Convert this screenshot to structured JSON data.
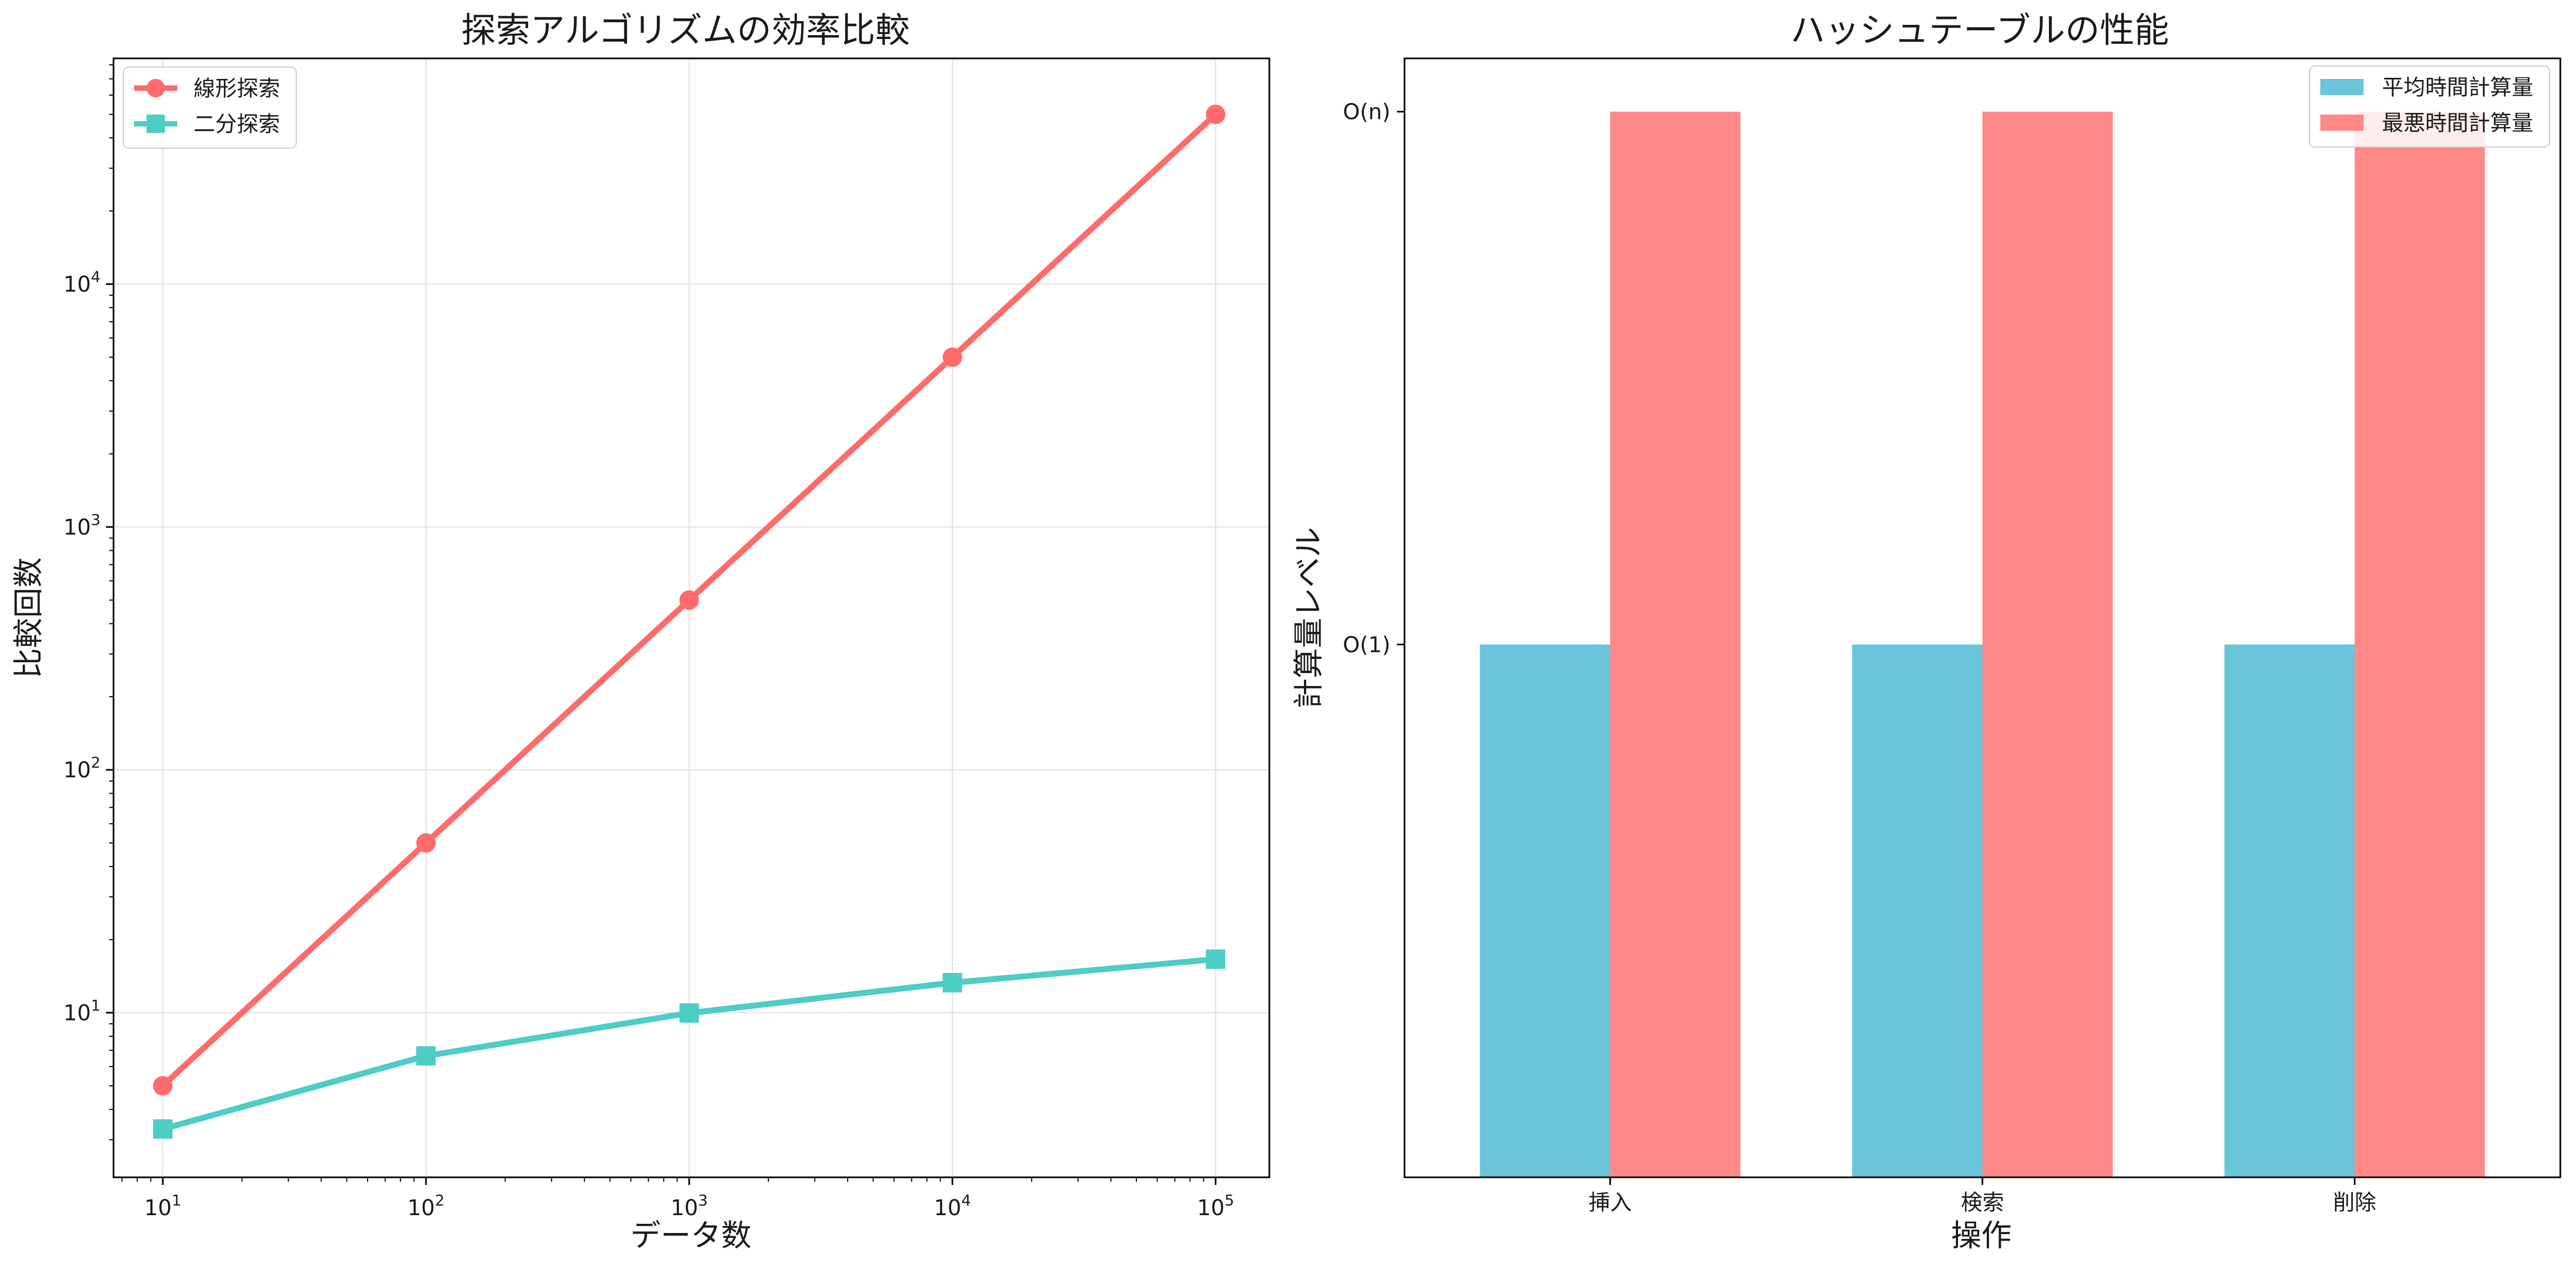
{
  "chart_data": [
    {
      "type": "line",
      "title": "探索アルゴリズムの効率比較",
      "xlabel": "データ数",
      "ylabel": "比較回数",
      "xscale": "log",
      "yscale": "log",
      "x": [
        10,
        100,
        1000,
        10000,
        100000
      ],
      "x_tick_labels": [
        {
          "base": "10",
          "exp": "1"
        },
        {
          "base": "10",
          "exp": "2"
        },
        {
          "base": "10",
          "exp": "3"
        },
        {
          "base": "10",
          "exp": "4"
        },
        {
          "base": "10",
          "exp": "5"
        }
      ],
      "y_tick_labels": [
        {
          "value": 10,
          "base": "10",
          "exp": "1"
        },
        {
          "value": 100,
          "base": "10",
          "exp": "2"
        },
        {
          "value": 1000,
          "base": "10",
          "exp": "3"
        },
        {
          "value": 10000,
          "base": "10",
          "exp": "4"
        }
      ],
      "xlim": [
        6.5,
        160000
      ],
      "ylim": [
        2.1,
        85000
      ],
      "grid": true,
      "legend_position": "top-left",
      "series": [
        {
          "name": "線形探索",
          "values": [
            5,
            50,
            500,
            5000,
            50000
          ],
          "color": "#FF6B6B",
          "marker": "circle"
        },
        {
          "name": "二分探索",
          "values": [
            3.32,
            6.64,
            9.97,
            13.29,
            16.61
          ],
          "color": "#4ECDC4",
          "marker": "square"
        }
      ]
    },
    {
      "type": "bar",
      "title": "ハッシュテーブルの性能",
      "xlabel": "操作",
      "ylabel": "計算量レベル",
      "categories": [
        "挿入",
        "検索",
        "削除"
      ],
      "ylim": [
        0,
        2.1
      ],
      "y_ticks": [
        {
          "value": 1,
          "label": "O(1)"
        },
        {
          "value": 2,
          "label": "O(n)"
        }
      ],
      "grid": false,
      "legend_position": "top-right",
      "series": [
        {
          "name": "平均時間計算量",
          "values": [
            1,
            1,
            1
          ],
          "color": "#45B7D1"
        },
        {
          "name": "最悪時間計算量",
          "values": [
            2,
            2,
            2
          ],
          "color": "#FF6B6B"
        }
      ]
    }
  ]
}
